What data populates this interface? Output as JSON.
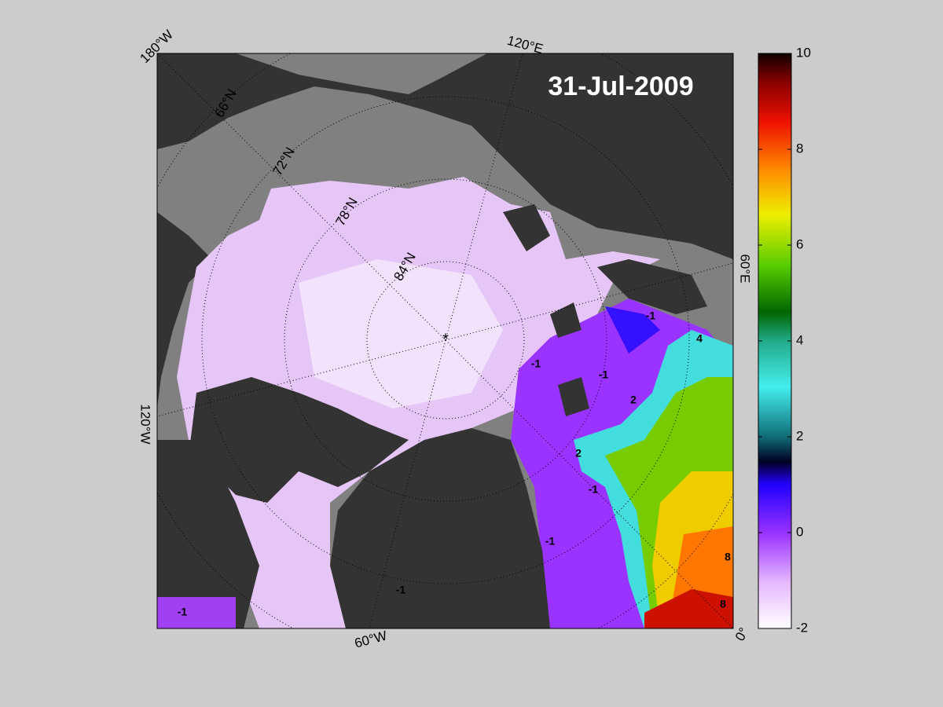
{
  "map": {
    "title": "31-Jul-2009",
    "lon_labels": [
      "180°W",
      "120°E",
      "60°E",
      "0°",
      "60°W",
      "120°W"
    ],
    "lat_labels": [
      "66°N",
      "72°N",
      "78°N",
      "84°N"
    ],
    "contour_labels": [
      "-1",
      "-1",
      "-1",
      "-1",
      "-1",
      "-1",
      "-1",
      "2",
      "2",
      "4",
      "8",
      "8"
    ]
  },
  "colorbar": {
    "lim": [
      -2,
      10
    ],
    "ticks": [
      -2,
      0,
      2,
      4,
      6,
      8,
      10
    ]
  }
}
